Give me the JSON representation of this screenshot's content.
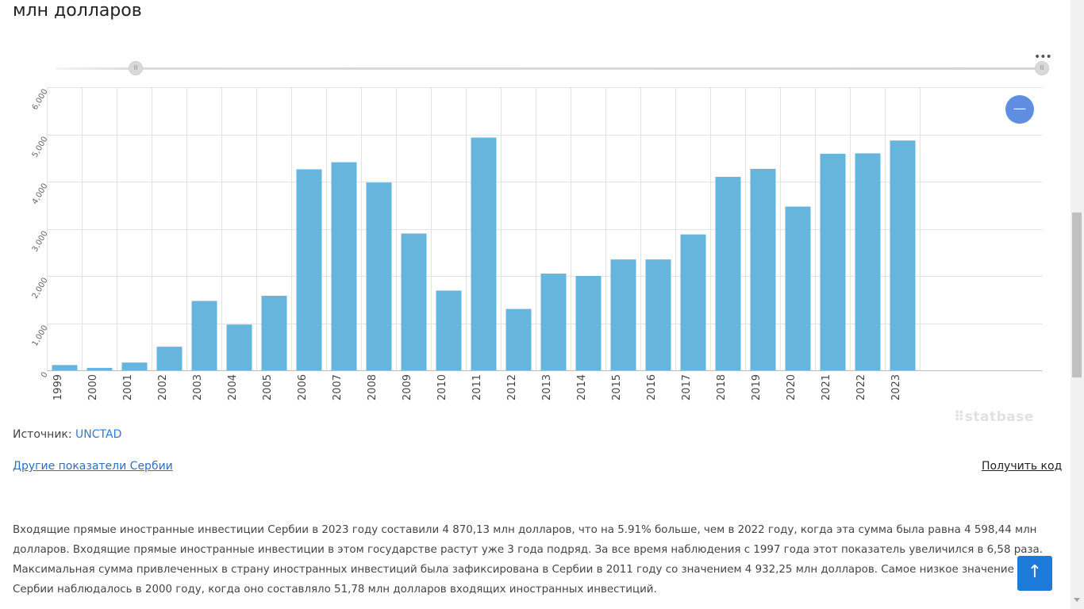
{
  "header": {
    "title": "млн долларов"
  },
  "chart_data": {
    "type": "bar",
    "categories": [
      "1999",
      "2000",
      "2001",
      "2002",
      "2003",
      "2004",
      "2005",
      "2006",
      "2007",
      "2008",
      "2009",
      "2010",
      "2011",
      "2012",
      "2013",
      "2014",
      "2015",
      "2016",
      "2017",
      "2018",
      "2019",
      "2020",
      "2021",
      "2022",
      "2023"
    ],
    "values": [
      112,
      51.78,
      165,
      500,
      1470,
      970,
      1580,
      4260,
      4410,
      3980,
      2900,
      1690,
      4932.25,
      1300,
      2050,
      2000,
      2350,
      2350,
      2880,
      4100,
      4270,
      3470,
      4590,
      4598.44,
      4870.13
    ],
    "ylim": [
      0,
      6000
    ],
    "yticks": [
      "0",
      "1,000",
      "2,000",
      "3,000",
      "4,000",
      "5,000",
      "6,000"
    ],
    "grid": true,
    "bar_color": "#67b5dc"
  },
  "controls": {
    "zoom_button": "—",
    "range_handle_left": "II",
    "range_handle_right": "II",
    "more_menu": "•••"
  },
  "watermark": "⠿statbase",
  "source": {
    "label": "Источник:",
    "link_text": "UNCTAD"
  },
  "links": {
    "other_indicators": "Другие показатели Сербии",
    "get_code": "Получить код"
  },
  "description": "Входящие прямые иностранные инвестиции Сербии в 2023 году составили 4 870,13 млн долларов, что на 5.91% больше, чем в 2022 году, когда эта сумма была равна 4 598,44 млн долларов. Входящие прямые иностранные инвестиции в этом государстве растут уже 3 года подряд. За все время наблюдения с 1997 года этот показатель увеличился в 6,58 раза. Максимальная сумма привлеченных в страну иностранных инвестиций была зафиксирована в Сербии в 2011 году со значением 4 932,25 млн долларов. Самое низкое значение Сербии наблюдалось в 2000 году, когда оно составляло 51,78 млн долларов входящих иностранных инвестиций.",
  "scroll_top_icon": "↑"
}
